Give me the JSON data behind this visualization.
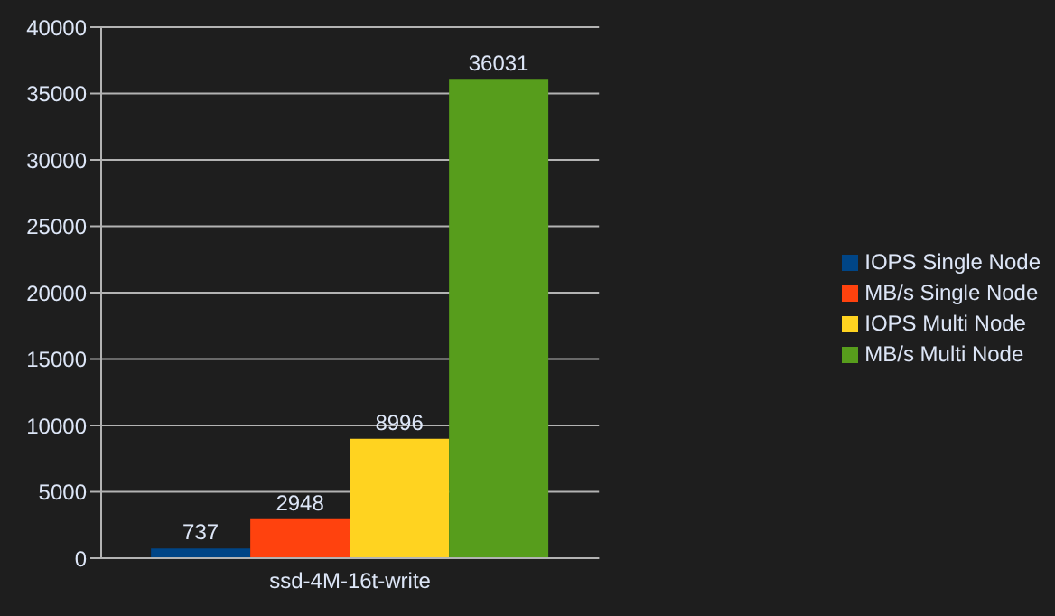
{
  "chart_data": {
    "type": "bar",
    "categories": [
      "ssd-4M-16t-write"
    ],
    "series": [
      {
        "name": "IOPS Single Node",
        "color": "#004586",
        "values": [
          737
        ]
      },
      {
        "name": "MB/s Single Node",
        "color": "#ff420e",
        "values": [
          2948
        ]
      },
      {
        "name": "IOPS Multi Node",
        "color": "#ffd320",
        "values": [
          8996
        ]
      },
      {
        "name": "MB/s Multi Node",
        "color": "#579d1c",
        "values": [
          36031
        ]
      }
    ],
    "ylim": [
      0,
      40000
    ],
    "yticks": [
      0,
      5000,
      10000,
      15000,
      20000,
      25000,
      30000,
      35000,
      40000
    ],
    "grid": "y",
    "legend": "right",
    "data_labels": true
  }
}
